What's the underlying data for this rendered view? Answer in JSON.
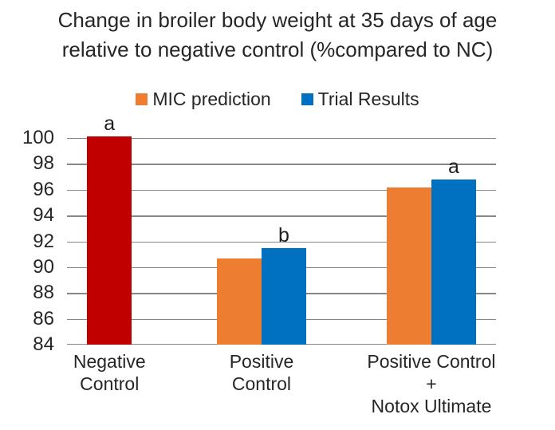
{
  "header": {
    "title_line1": "Change in broiler body weight at 35 days of age",
    "title_line2": "relative to negative control (%compared to NC)"
  },
  "chart_data": {
    "type": "bar",
    "title": "Change in broiler body weight at 35 days of age relative to negative control (%compared to NC)",
    "xlabel": "",
    "ylabel": "",
    "ylim": [
      84,
      100.5
    ],
    "yticks": [
      84,
      86,
      88,
      90,
      92,
      94,
      96,
      98,
      100
    ],
    "grid": "horizontal",
    "gridline_color": "#878787",
    "legend_position": "top-center",
    "legend": [
      {
        "label": "MIC prediction",
        "color": "#ed7d31"
      },
      {
        "label": "Trial Results",
        "color": "#0070c0"
      }
    ],
    "categories": [
      "Negative Control",
      "Positive Control",
      "Positive Control + Notox Ultimate"
    ],
    "series": [
      {
        "name": "Negative Control reference",
        "color": "#c00000",
        "values": [
          100.1,
          null,
          null
        ]
      },
      {
        "name": "MIC prediction",
        "color": "#ed7d31",
        "values": [
          null,
          90.7,
          96.2
        ]
      },
      {
        "name": "Trial Results",
        "color": "#0070c0",
        "values": [
          null,
          91.5,
          96.8
        ]
      }
    ],
    "bar_width_frac": 0.104,
    "groups": [
      {
        "label_lines": [
          "Negative",
          "Control"
        ],
        "center_frac": 0.099,
        "bars": [
          {
            "name": "negative-control",
            "value": 100.1,
            "color": "#c00000",
            "annotation": "a"
          }
        ]
      },
      {
        "label_lines": [
          "Positive",
          "Control"
        ],
        "center_frac": 0.4535,
        "bars": [
          {
            "name": "positive-control-mic-prediction",
            "value": 90.7,
            "color": "#ed7d31"
          },
          {
            "name": "positive-control-trial-results",
            "value": 91.5,
            "color": "#0070c0",
            "annotation": "b"
          }
        ]
      },
      {
        "label_lines": [
          "Positive Control",
          "+",
          "Notox Ultimate"
        ],
        "center_frac": 0.8494,
        "bars": [
          {
            "name": "positive-control-notox-mic-prediction",
            "value": 96.2,
            "color": "#ed7d31"
          },
          {
            "name": "positive-control-notox-trial-results",
            "value": 96.8,
            "color": "#0070c0",
            "annotation": "a"
          }
        ]
      }
    ]
  }
}
